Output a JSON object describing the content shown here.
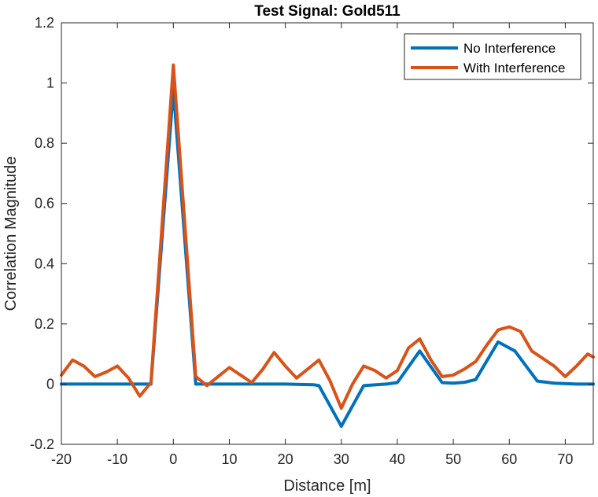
{
  "chart_data": {
    "type": "line",
    "title": "Test Signal: Gold511",
    "xlabel": "Distance [m]",
    "ylabel": "Correlation Magnitude",
    "xlim": [
      -20,
      75
    ],
    "ylim": [
      -0.2,
      1.2
    ],
    "x_ticks": [
      -20,
      -10,
      0,
      10,
      20,
      30,
      40,
      50,
      60,
      70
    ],
    "y_ticks": [
      -0.2,
      0,
      0.2,
      0.4,
      0.6,
      0.8,
      1,
      1.2
    ],
    "x_tick_labels": [
      "-20",
      "-10",
      "0",
      "10",
      "20",
      "30",
      "40",
      "50",
      "60",
      "70"
    ],
    "y_tick_labels": [
      "-0.2",
      "0",
      "0.2",
      "0.4",
      "0.6",
      "0.8",
      "1",
      "1.2"
    ],
    "grid": false,
    "legend_position": "top-right",
    "series": [
      {
        "name": "No Interference",
        "color": "#0072BD",
        "points": [
          [
            -20,
            0
          ],
          [
            -16,
            0
          ],
          [
            -12,
            0
          ],
          [
            -8,
            0
          ],
          [
            -6,
            0
          ],
          [
            -4,
            0
          ],
          [
            0,
            0.98
          ],
          [
            4,
            0
          ],
          [
            10,
            0
          ],
          [
            20,
            0
          ],
          [
            25,
            -0.002
          ],
          [
            26,
            -0.005
          ],
          [
            30,
            -0.14
          ],
          [
            34,
            -0.005
          ],
          [
            38,
            0
          ],
          [
            40,
            0.005
          ],
          [
            44,
            0.11
          ],
          [
            48,
            0.005
          ],
          [
            50,
            0.003
          ],
          [
            52,
            0.006
          ],
          [
            54,
            0.015
          ],
          [
            58,
            0.14
          ],
          [
            61,
            0.11
          ],
          [
            65,
            0.01
          ],
          [
            68,
            0.003
          ],
          [
            72,
            0
          ],
          [
            75,
            0
          ]
        ]
      },
      {
        "name": "With Interference",
        "color": "#D95319",
        "points": [
          [
            -20,
            0.03
          ],
          [
            -18,
            0.08
          ],
          [
            -16,
            0.06
          ],
          [
            -14,
            0.025
          ],
          [
            -12,
            0.04
          ],
          [
            -10,
            0.06
          ],
          [
            -8,
            0.02
          ],
          [
            -6,
            -0.04
          ],
          [
            -4,
            0.005
          ],
          [
            0,
            1.06
          ],
          [
            4,
            0.025
          ],
          [
            6,
            -0.005
          ],
          [
            8,
            0.025
          ],
          [
            10,
            0.055
          ],
          [
            12,
            0.03
          ],
          [
            14,
            0.005
          ],
          [
            16,
            0.05
          ],
          [
            18,
            0.105
          ],
          [
            20,
            0.06
          ],
          [
            22,
            0.02
          ],
          [
            24,
            0.05
          ],
          [
            26,
            0.08
          ],
          [
            28,
            0.01
          ],
          [
            30,
            -0.08
          ],
          [
            32,
            0.0
          ],
          [
            34,
            0.06
          ],
          [
            36,
            0.045
          ],
          [
            38,
            0.02
          ],
          [
            40,
            0.045
          ],
          [
            42,
            0.12
          ],
          [
            44,
            0.15
          ],
          [
            46,
            0.08
          ],
          [
            48,
            0.025
          ],
          [
            50,
            0.03
          ],
          [
            52,
            0.05
          ],
          [
            54,
            0.075
          ],
          [
            56,
            0.13
          ],
          [
            58,
            0.18
          ],
          [
            60,
            0.19
          ],
          [
            62,
            0.175
          ],
          [
            64,
            0.11
          ],
          [
            66,
            0.085
          ],
          [
            68,
            0.06
          ],
          [
            70,
            0.025
          ],
          [
            72,
            0.06
          ],
          [
            74,
            0.1
          ],
          [
            75,
            0.09
          ]
        ]
      }
    ]
  }
}
